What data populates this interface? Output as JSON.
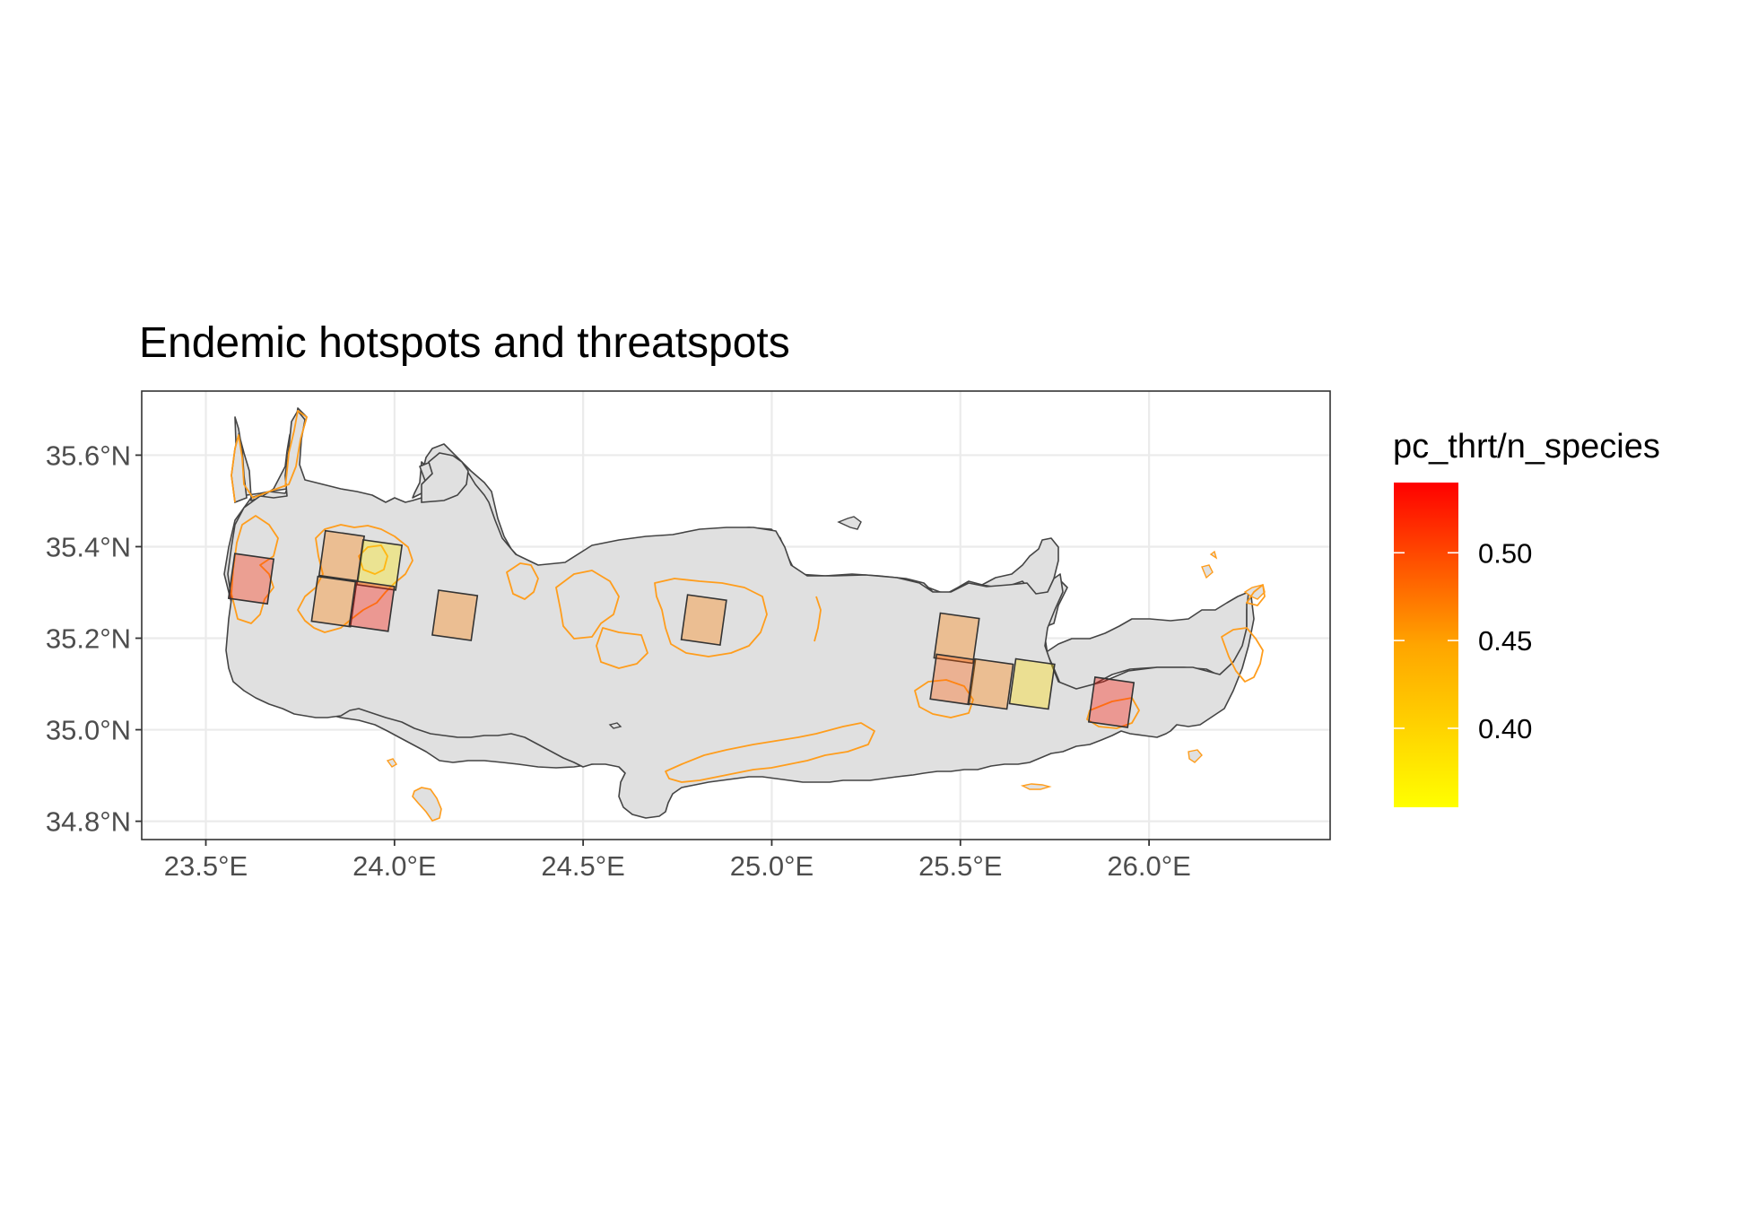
{
  "chart_data": {
    "type": "map",
    "title": "Endemic hotspots and threatspots",
    "region": "Crete",
    "xlim": [
      23.33,
      26.48
    ],
    "ylim": [
      34.76,
      35.74
    ],
    "x_ticks": [
      23.5,
      24.0,
      24.5,
      25.0,
      25.5,
      26.0
    ],
    "x_tick_labels": [
      "23.5°E",
      "24.0°E",
      "24.5°E",
      "25.0°E",
      "25.5°E",
      "26.0°E"
    ],
    "y_ticks": [
      35.6,
      35.4,
      35.2,
      35.0,
      34.8
    ],
    "y_tick_labels": [
      "35.6°N",
      "35.4°N",
      "35.2°N",
      "35.0°N",
      "34.8°N"
    ],
    "grid": true,
    "colors": {
      "panel_background": "#ffffff",
      "grid": "#ebebeb",
      "land_fill": "#e0e0e0",
      "land_outline": "#444444",
      "protected_area_outline": "#ff9d1c",
      "cell_outline": "#333333",
      "scale_low": "#ffff00",
      "scale_high": "#ff0000"
    },
    "cells": [
      {
        "lon": 23.62,
        "lat": 35.33,
        "value": 0.52
      },
      {
        "lon": 23.86,
        "lat": 35.38,
        "value": 0.47
      },
      {
        "lon": 23.96,
        "lat": 35.36,
        "value": 0.38
      },
      {
        "lon": 23.84,
        "lat": 35.28,
        "value": 0.47
      },
      {
        "lon": 23.94,
        "lat": 35.27,
        "value": 0.53
      },
      {
        "lon": 24.16,
        "lat": 35.25,
        "value": 0.47
      },
      {
        "lon": 24.82,
        "lat": 35.24,
        "value": 0.47
      },
      {
        "lon": 25.49,
        "lat": 35.2,
        "value": 0.47
      },
      {
        "lon": 25.48,
        "lat": 35.11,
        "value": 0.49
      },
      {
        "lon": 25.58,
        "lat": 35.1,
        "value": 0.47
      },
      {
        "lon": 25.69,
        "lat": 35.1,
        "value": 0.39
      },
      {
        "lon": 25.9,
        "lat": 35.06,
        "value": 0.53
      }
    ],
    "legend": {
      "title": "pc_thrt/n_species",
      "position": "right",
      "min": 0.355,
      "max": 0.54,
      "breaks": [
        0.5,
        0.45,
        0.4
      ],
      "break_labels": [
        "0.50",
        "0.45",
        "0.40"
      ]
    }
  }
}
